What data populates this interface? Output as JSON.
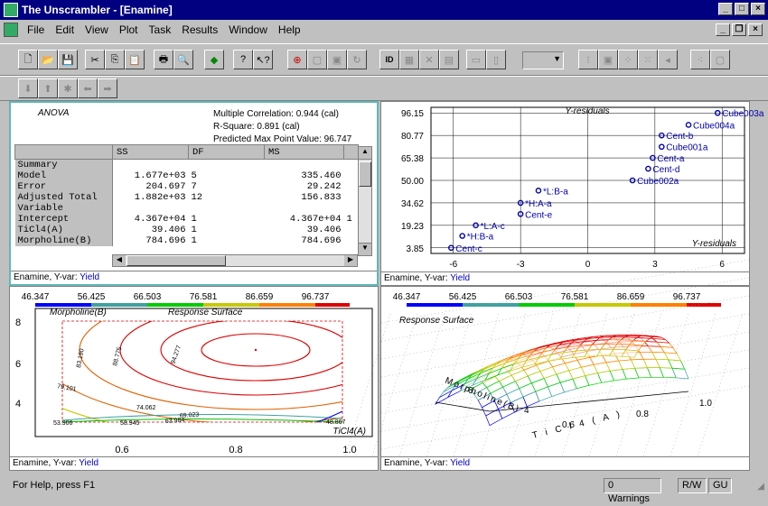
{
  "window": {
    "title": "The Unscrambler - [Enamine]"
  },
  "menu": [
    "File",
    "Edit",
    "View",
    "Plot",
    "Task",
    "Results",
    "Window",
    "Help"
  ],
  "anova": {
    "title": "ANOVA",
    "multiple_correlation": "Multiple Correlation: 0.944 (cal)",
    "r_square": "R-Square: 0.891 (cal)",
    "predicted_max": "Predicted Max Point Value: 96.747",
    "columns": [
      "SS",
      "DF",
      "MS"
    ],
    "rows": [
      {
        "label": "Summary",
        "ss": "",
        "df": "",
        "ms": ""
      },
      {
        "label": "Model",
        "ss": "1.677e+03",
        "df": "5",
        "ms": "335.460"
      },
      {
        "label": "Error",
        "ss": "204.697",
        "df": "7",
        "ms": "29.242"
      },
      {
        "label": "Adjusted Total",
        "ss": "1.882e+03",
        "df": "12",
        "ms": "156.833"
      },
      {
        "label": "Variable",
        "ss": "",
        "df": "",
        "ms": ""
      },
      {
        "label": "Intercept",
        "ss": "4.367e+04",
        "df": "1",
        "ms": "4.367e+04"
      },
      {
        "label": "TiCl4(A)",
        "ss": "39.406",
        "df": "1",
        "ms": "39.406"
      },
      {
        "label": "Morpholine(B)",
        "ss": "784.696",
        "df": "1",
        "ms": "784.696"
      }
    ],
    "cut_value": "1",
    "footer_prefix": "Enamine, Y-var:",
    "footer_var": "Yield"
  },
  "chart_data": [
    {
      "type": "scatter",
      "title": "Y-residuals",
      "xlabel": "Y-residuals",
      "xlim": [
        -7,
        7
      ],
      "ylim": [
        0,
        100
      ],
      "x_ticks": [
        "-6",
        "-3",
        "0",
        "3",
        "6"
      ],
      "y_ticks": [
        "96.15",
        "80.77",
        "65.38",
        "50.00",
        "34.62",
        "19.23",
        "3.85"
      ],
      "points": [
        {
          "label": "Cube003a",
          "x": 5.8,
          "y": 96.15
        },
        {
          "label": "Cube004a",
          "x": 4.5,
          "y": 88
        },
        {
          "label": "Cent-b",
          "x": 3.3,
          "y": 80.77
        },
        {
          "label": "Cube001a",
          "x": 3.3,
          "y": 73
        },
        {
          "label": "Cent-a",
          "x": 2.9,
          "y": 65.38
        },
        {
          "label": "Cent-d",
          "x": 2.7,
          "y": 58
        },
        {
          "label": "Cube002a",
          "x": 2.0,
          "y": 50.0
        },
        {
          "label": "*L:B-a",
          "x": -2.2,
          "y": 43
        },
        {
          "label": "*H:A-a",
          "x": -3.0,
          "y": 34.62
        },
        {
          "label": "Cent-e",
          "x": -3.0,
          "y": 27
        },
        {
          "label": "*L:A-c",
          "x": -5.0,
          "y": 19.23
        },
        {
          "label": "*H:B-a",
          "x": -5.6,
          "y": 12
        },
        {
          "label": "Cent-c",
          "x": -6.1,
          "y": 3.85
        }
      ],
      "footer_prefix": "Enamine, Y-var:",
      "footer_var": "Yield"
    },
    {
      "type": "contour",
      "title": "Response Surface",
      "xlabel": "TiCl4(A)",
      "ylabel": "Morpholine(B)",
      "legend": [
        "46.347",
        "56.425",
        "66.503",
        "76.581",
        "86.659",
        "96.737"
      ],
      "legend_colors": [
        "#0000ff",
        "#3fa0a0",
        "#00cc00",
        "#c8c800",
        "#ff8000",
        "#e00000"
      ],
      "x_ticks": [
        "0.6",
        "0.8",
        "1.0"
      ],
      "y_ticks": [
        "8",
        "6",
        "4"
      ],
      "contour_labels": [
        "94.277",
        "88.775",
        "83.190",
        "79.101",
        "74.062",
        "69.023",
        "63.984",
        "58.945",
        "53.906",
        "48.867"
      ],
      "footer_prefix": "Enamine, Y-var:",
      "footer_var": "Yield"
    },
    {
      "type": "surface",
      "title": "Response Surface",
      "legend": [
        "46.347",
        "56.425",
        "66.503",
        "76.581",
        "86.659",
        "96.737"
      ],
      "axis_labels": [
        "Morpholine(B)",
        "TiCl4(A)"
      ],
      "axis_ticks": [
        "4",
        "6",
        "0.6",
        "0.8",
        "1.0"
      ],
      "footer_prefix": "Enamine, Y-var:",
      "footer_var": "Yield"
    }
  ],
  "status": {
    "help": "For Help, press F1",
    "warnings": "0 Warnings",
    "rw": "R/W",
    "gu": "GU"
  }
}
